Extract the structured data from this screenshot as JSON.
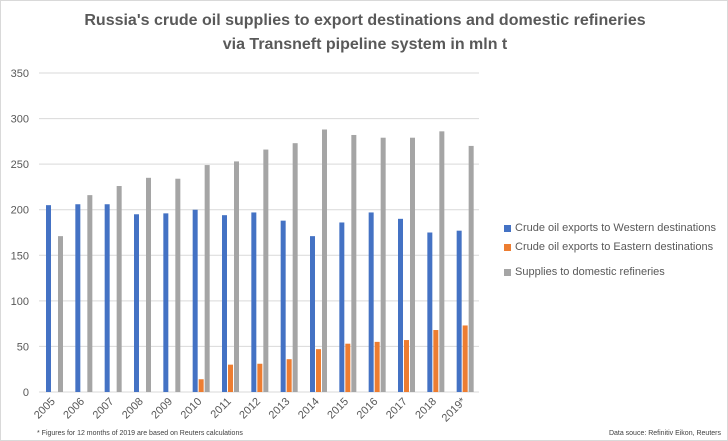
{
  "chart_data": {
    "type": "bar",
    "title_lines": [
      "Russia's crude oil supplies to export destinations and domestic refineries",
      "via Transneft pipeline system in mln t"
    ],
    "categories": [
      "2005",
      "2006",
      "2007",
      "2008",
      "2009",
      "2010",
      "2011",
      "2012",
      "2013",
      "2014",
      "2015",
      "2016",
      "2017",
      "2018",
      "2019*"
    ],
    "series": [
      {
        "name": "Crude oil exports to Western destinations",
        "color": "#4472c4",
        "values": [
          205,
          206,
          206,
          195,
          196,
          200,
          194,
          197,
          188,
          171,
          186,
          197,
          190,
          175,
          177
        ]
      },
      {
        "name": "Crude oil exports to Eastern destinations",
        "color": "#ed7d31",
        "values": [
          0,
          0,
          0,
          0,
          0,
          14,
          30,
          31,
          36,
          47,
          53,
          55,
          57,
          68,
          73
        ]
      },
      {
        "name": "Supplies to domestic refineries",
        "color": "#a5a5a5",
        "values": [
          171,
          216,
          226,
          235,
          234,
          249,
          253,
          266,
          273,
          288,
          282,
          279,
          279,
          286,
          270
        ]
      }
    ],
    "yticks": [
      0,
      50,
      100,
      150,
      200,
      250,
      300,
      350
    ],
    "ylim": [
      0,
      350
    ],
    "grid": true,
    "legend_position": "right",
    "xlabel": "",
    "ylabel": ""
  },
  "footnote": "* Figures for 12 months of 2019 are based on Reuters calculations",
  "source": "Data souce: Refinitiv Eikon, Reuters"
}
